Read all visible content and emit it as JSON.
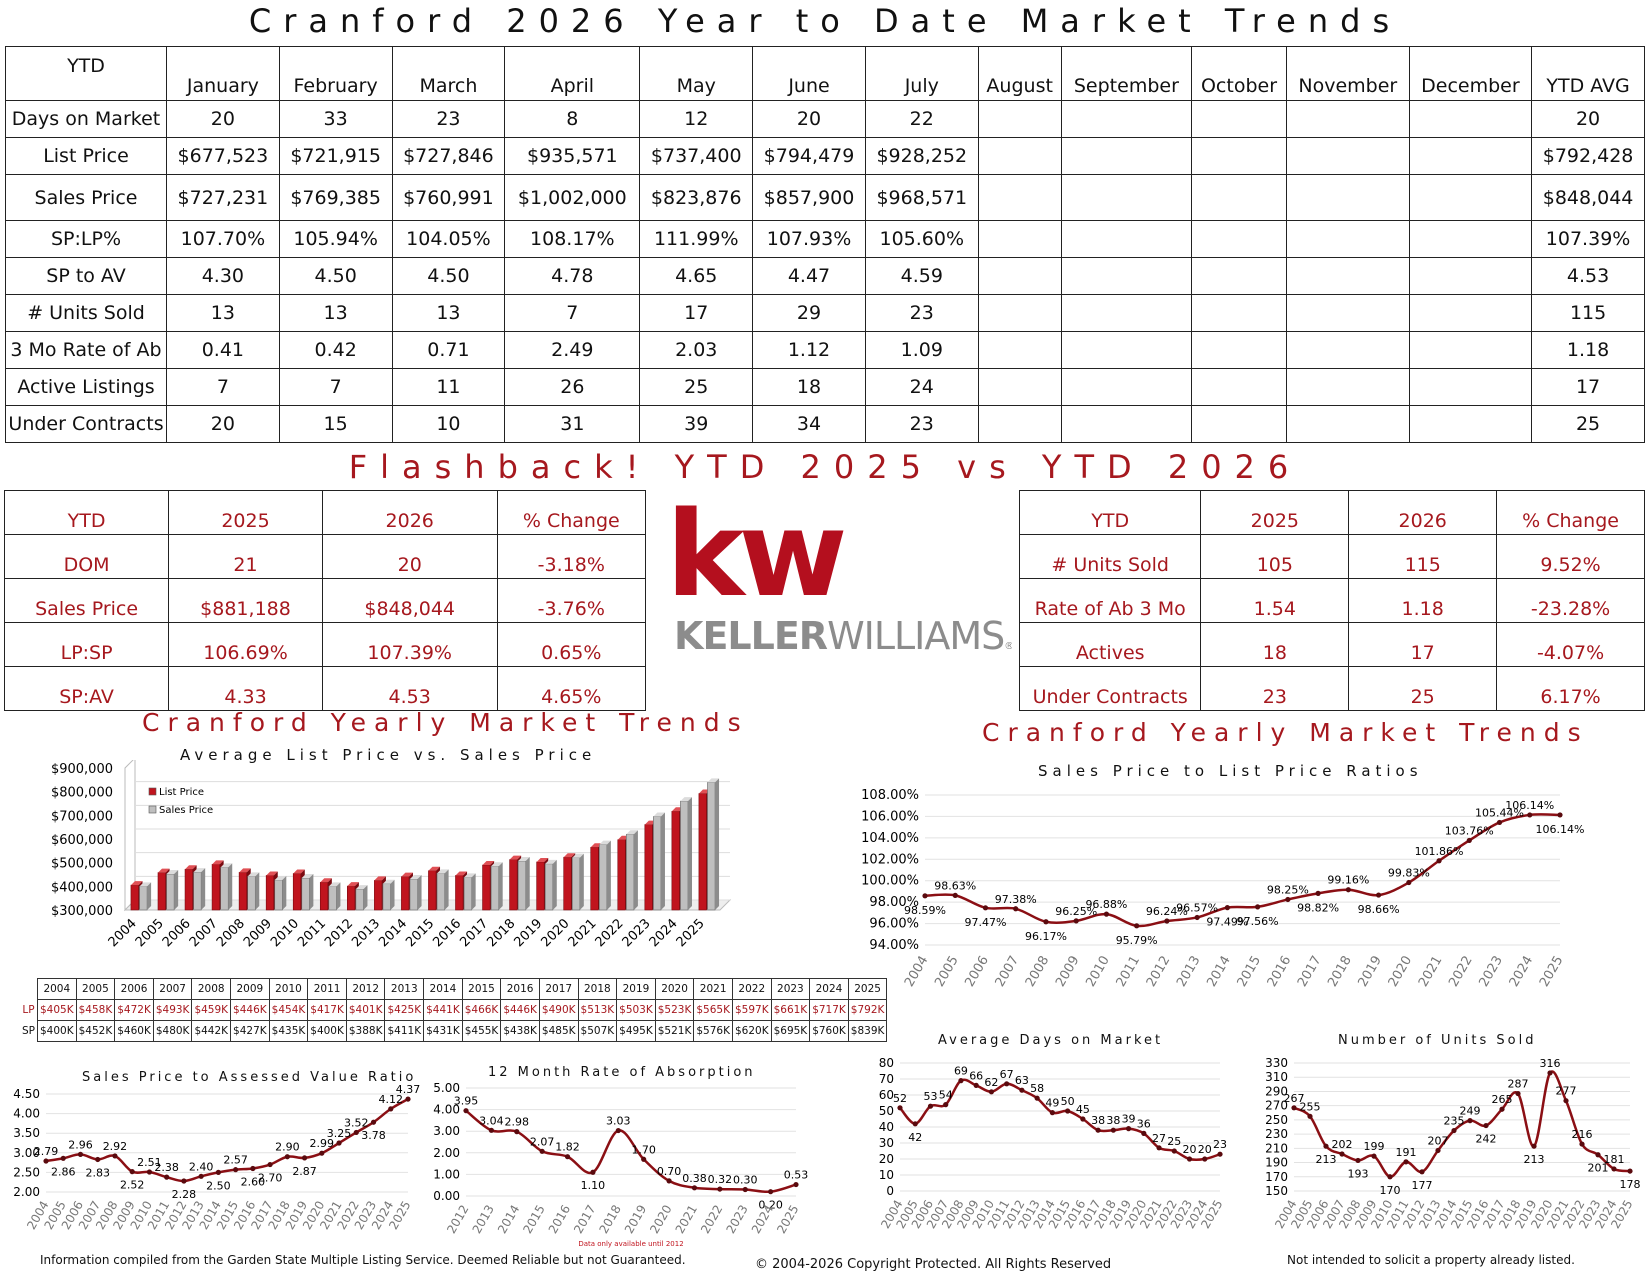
{
  "main_title": "Cranford 2026 Year to Date Market Trends",
  "ytd": {
    "corner": "YTD",
    "months": [
      "January",
      "February",
      "March",
      "April",
      "May",
      "June",
      "July",
      "August",
      "September",
      "October",
      "November",
      "December",
      "YTD AVG"
    ],
    "rows": [
      {
        "label": "Days on Market",
        "values": [
          "20",
          "33",
          "23",
          "8",
          "12",
          "20",
          "22",
          "",
          "",
          "",
          "",
          "",
          "20"
        ]
      },
      {
        "label": "List Price",
        "values": [
          "$677,523",
          "$721,915",
          "$727,846",
          "$935,571",
          "$737,400",
          "$794,479",
          "$928,252",
          "",
          "",
          "",
          "",
          "",
          "$792,428"
        ]
      },
      {
        "label": "Sales Price",
        "values": [
          "$727,231",
          "$769,385",
          "$760,991",
          "$1,002,000",
          "$823,876",
          "$857,900",
          "$968,571",
          "",
          "",
          "",
          "",
          "",
          "$848,044"
        ]
      },
      {
        "label": "SP:LP%",
        "values": [
          "107.70%",
          "105.94%",
          "104.05%",
          "108.17%",
          "111.99%",
          "107.93%",
          "105.60%",
          "",
          "",
          "",
          "",
          "",
          "107.39%"
        ]
      },
      {
        "label": "SP to AV",
        "values": [
          "4.30",
          "4.50",
          "4.50",
          "4.78",
          "4.65",
          "4.47",
          "4.59",
          "",
          "",
          "",
          "",
          "",
          "4.53"
        ]
      },
      {
        "label": "# Units Sold",
        "values": [
          "13",
          "13",
          "13",
          "7",
          "17",
          "29",
          "23",
          "",
          "",
          "",
          "",
          "",
          "115"
        ]
      },
      {
        "label": "3 Mo Rate of Ab",
        "values": [
          "0.41",
          "0.42",
          "0.71",
          "2.49",
          "2.03",
          "1.12",
          "1.09",
          "",
          "",
          "",
          "",
          "",
          "1.18"
        ]
      },
      {
        "label": "Active Listings",
        "values": [
          "7",
          "7",
          "11",
          "26",
          "25",
          "18",
          "24",
          "",
          "",
          "",
          "",
          "",
          "17"
        ]
      },
      {
        "label": "Under Contracts",
        "values": [
          "20",
          "15",
          "10",
          "31",
          "39",
          "34",
          "23",
          "",
          "",
          "",
          "",
          "",
          "25"
        ]
      }
    ]
  },
  "flashback_title": "Flashback!  YTD 2025 vs YTD 2026",
  "compare_left": {
    "headers": [
      "YTD",
      "2025",
      "2026",
      "% Change"
    ],
    "rows": [
      [
        "DOM",
        "21",
        "20",
        "-3.18%"
      ],
      [
        "Sales Price",
        "$881,188",
        "$848,044",
        "-3.76%"
      ],
      [
        "LP:SP",
        "106.69%",
        "107.39%",
        "0.65%"
      ],
      [
        "SP:AV",
        "4.33",
        "4.53",
        "4.65%"
      ]
    ]
  },
  "compare_right": {
    "headers": [
      "YTD",
      "2025",
      "2026",
      "% Change"
    ],
    "rows": [
      [
        "# Units Sold",
        "105",
        "115",
        "9.52%"
      ],
      [
        "Rate of Ab 3 Mo",
        "1.54",
        "1.18",
        "-23.28%"
      ],
      [
        "Actives",
        "18",
        "17",
        "-4.07%"
      ],
      [
        "Under Contracts",
        "23",
        "25",
        "6.17%"
      ]
    ]
  },
  "logo": {
    "mark": "kw",
    "wordmark_bold": "KELLER",
    "wordmark_light": "WILLIAMS",
    "registered": "®",
    "colors": {
      "red": "#b40f1e",
      "gray": "#8c8c8c"
    }
  },
  "yearly_title_left": "Cranford Yearly Market Trends",
  "yearly_title_right": "Cranford Yearly Market Trends",
  "lp_table": {
    "years": [
      "2004",
      "2005",
      "2006",
      "2007",
      "2008",
      "2009",
      "2010",
      "2011",
      "2012",
      "2013",
      "2014",
      "2015",
      "2016",
      "2017",
      "2018",
      "2019",
      "2020",
      "2021",
      "2022",
      "2023",
      "2024",
      "2025"
    ],
    "lp_label": "LP",
    "sp_label": "SP",
    "lp": [
      "$405K",
      "$458K",
      "$472K",
      "$493K",
      "$459K",
      "$446K",
      "$454K",
      "$417K",
      "$401K",
      "$425K",
      "$441K",
      "$466K",
      "$446K",
      "$490K",
      "$513K",
      "$503K",
      "$523K",
      "$565K",
      "$597K",
      "$661K",
      "$717K",
      "$792K"
    ],
    "sp": [
      "$400K",
      "$452K",
      "$460K",
      "$480K",
      "$442K",
      "$427K",
      "$435K",
      "$400K",
      "$388K",
      "$411K",
      "$431K",
      "$455K",
      "$438K",
      "$485K",
      "$507K",
      "$495K",
      "$521K",
      "$576K",
      "$620K",
      "$695K",
      "$760K",
      "$839K"
    ]
  },
  "chart_data": [
    {
      "id": "price",
      "type": "bar",
      "title": "Average List Price vs. Sales Price",
      "categories": [
        "2004",
        "2005",
        "2006",
        "2007",
        "2008",
        "2009",
        "2010",
        "2011",
        "2012",
        "2013",
        "2014",
        "2015",
        "2016",
        "2017",
        "2018",
        "2019",
        "2020",
        "2021",
        "2022",
        "2023",
        "2024",
        "2025"
      ],
      "series": [
        {
          "name": "List Price",
          "color": "#c0141e",
          "values": [
            405000,
            458000,
            472000,
            493000,
            459000,
            446000,
            454000,
            417000,
            401000,
            425000,
            441000,
            466000,
            446000,
            490000,
            513000,
            503000,
            523000,
            565000,
            597000,
            661000,
            717000,
            792000
          ]
        },
        {
          "name": "Sales Price",
          "color": "#bfbfbf",
          "values": [
            400000,
            452000,
            460000,
            480000,
            442000,
            427000,
            435000,
            400000,
            388000,
            411000,
            431000,
            455000,
            438000,
            485000,
            507000,
            495000,
            521000,
            576000,
            620000,
            695000,
            760000,
            839000
          ]
        }
      ],
      "ylim": [
        300000,
        900000
      ],
      "yticks": [
        "$300,000",
        "$400,000",
        "$500,000",
        "$600,000",
        "$700,000",
        "$800,000",
        "$900,000"
      ],
      "legend": "top-left"
    },
    {
      "id": "splp",
      "type": "line",
      "title": "Sales Price to List Price Ratios",
      "x": [
        "2004",
        "2005",
        "2006",
        "2007",
        "2008",
        "2009",
        "2010",
        "2011",
        "2012",
        "2013",
        "2014",
        "2015",
        "2016",
        "2017",
        "2018",
        "2019",
        "2020",
        "2021",
        "2022",
        "2023",
        "2024",
        "2025"
      ],
      "values": [
        98.59,
        98.63,
        97.47,
        97.38,
        96.17,
        96.25,
        96.88,
        95.79,
        96.24,
        96.57,
        97.49,
        97.56,
        98.25,
        98.82,
        99.16,
        98.66,
        99.83,
        101.86,
        103.76,
        105.44,
        106.14,
        106.14
      ],
      "labels": [
        "98.59%",
        "98.63%",
        "97.47%",
        "97.38%",
        "96.17%",
        "96.25%",
        "96.88%",
        "95.79%",
        "96.24%",
        "96.57%",
        "97.49%",
        "97.56%",
        "98.25%",
        "98.82%",
        "99.16%",
        "98.66%",
        "99.83%",
        "101.86%",
        "103.76%",
        "105.44%",
        "106.14%",
        "106.14%"
      ],
      "ylim": [
        94,
        108
      ],
      "yticks": [
        "94.00%",
        "96.00%",
        "98.00%",
        "100.00%",
        "102.00%",
        "104.00%",
        "106.00%",
        "108.00%"
      ]
    },
    {
      "id": "spav",
      "type": "line",
      "title": "Sales Price to Assessed Value Ratio",
      "x": [
        "2004",
        "2005",
        "2006",
        "2007",
        "2008",
        "2009",
        "2010",
        "2011",
        "2012",
        "2013",
        "2014",
        "2015",
        "2016",
        "2017",
        "2018",
        "2019",
        "2020",
        "2021",
        "2022",
        "2023",
        "2024",
        "2025"
      ],
      "values": [
        2.79,
        2.86,
        2.96,
        2.83,
        2.92,
        2.52,
        2.51,
        2.38,
        2.28,
        2.4,
        2.5,
        2.57,
        2.6,
        2.7,
        2.9,
        2.87,
        2.99,
        3.25,
        3.52,
        3.78,
        4.12,
        4.37
      ],
      "labels": [
        "2.79",
        "2.86",
        "2.96",
        "2.83",
        "2.92",
        "2.52",
        "2.51",
        "2.38",
        "2.28",
        "2.40",
        "2.50",
        "2.57",
        "2.60",
        "2.70",
        "2.90",
        "2.87",
        "2.99",
        "3.25",
        "3.52",
        "3.78",
        "4.12",
        "4.37"
      ],
      "ylim": [
        2.0,
        4.5
      ],
      "yticks": [
        "2.00",
        "2.50",
        "3.00",
        "3.50",
        "4.00",
        "4.50"
      ]
    },
    {
      "id": "absorption",
      "type": "line",
      "title": "12 Month Rate of Absorption",
      "x": [
        "2012",
        "2013",
        "2014",
        "2015",
        "2016",
        "2017",
        "2018",
        "2019",
        "2020",
        "2021",
        "2022",
        "2023",
        "2024",
        "2025"
      ],
      "values": [
        3.95,
        3.04,
        2.98,
        2.07,
        1.82,
        1.1,
        3.03,
        1.7,
        0.7,
        0.38,
        0.32,
        0.3,
        0.2,
        0.53
      ],
      "labels": [
        "3.95",
        "3.04",
        "2.98",
        "2.07",
        "1.82",
        "1.10",
        "3.03",
        "1.70",
        "0.70",
        "0.38",
        "0.32",
        "0.30",
        "0.20",
        "0.53"
      ],
      "ylim": [
        0,
        5
      ],
      "yticks": [
        "0.00",
        "1.00",
        "2.00",
        "3.00",
        "4.00",
        "5.00"
      ],
      "note": "Data only available until 2012"
    },
    {
      "id": "dom",
      "type": "line",
      "title": "Average Days on Market",
      "x": [
        "2004",
        "2005",
        "2006",
        "2007",
        "2008",
        "2009",
        "2010",
        "2011",
        "2012",
        "2013",
        "2014",
        "2015",
        "2016",
        "2017",
        "2018",
        "2019",
        "2020",
        "2021",
        "2022",
        "2023",
        "2024",
        "2025"
      ],
      "values": [
        52,
        42,
        53,
        54,
        69,
        66,
        62,
        67,
        63,
        58,
        49,
        50,
        45,
        38,
        38,
        39,
        36,
        27,
        25,
        20,
        20,
        23
      ],
      "labels": [
        "52",
        "42",
        "53",
        "54",
        "69",
        "66",
        "62",
        "67",
        "63",
        "58",
        "49",
        "50",
        "45",
        "38",
        "38",
        "39",
        "36",
        "27",
        "25",
        "20",
        "20",
        "23"
      ],
      "ylim": [
        0,
        80
      ],
      "yticks": [
        "0",
        "10",
        "20",
        "30",
        "40",
        "50",
        "60",
        "70",
        "80"
      ]
    },
    {
      "id": "units",
      "type": "line",
      "title": "Number of Units Sold",
      "x": [
        "2004",
        "2005",
        "2006",
        "2007",
        "2008",
        "2009",
        "2010",
        "2011",
        "2012",
        "2013",
        "2014",
        "2015",
        "2016",
        "2017",
        "2018",
        "2019",
        "2020",
        "2021",
        "2022",
        "2023",
        "2024",
        "2025"
      ],
      "values": [
        267,
        255,
        213,
        202,
        193,
        199,
        170,
        191,
        177,
        207,
        235,
        249,
        242,
        265,
        287,
        213,
        316,
        277,
        216,
        201,
        181,
        178
      ],
      "labels": [
        "267",
        "255",
        "213",
        "202",
        "193",
        "199",
        "170",
        "191",
        "177",
        "207",
        "235",
        "249",
        "242",
        "265",
        "287",
        "213",
        "316",
        "277",
        "216",
        "201",
        "181",
        "178"
      ],
      "ylim": [
        150,
        330
      ],
      "yticks": [
        "150",
        "170",
        "190",
        "210",
        "230",
        "250",
        "270",
        "290",
        "310",
        "330"
      ]
    }
  ],
  "footer": {
    "left": "Information compiled from the Garden State Multiple Listing Service.  Deemed Reliable but not Guaranteed.",
    "center": "© 2004-2026 Copyright Protected.  All Rights Reserved",
    "right": "Not intended to solicit a property already listed."
  }
}
